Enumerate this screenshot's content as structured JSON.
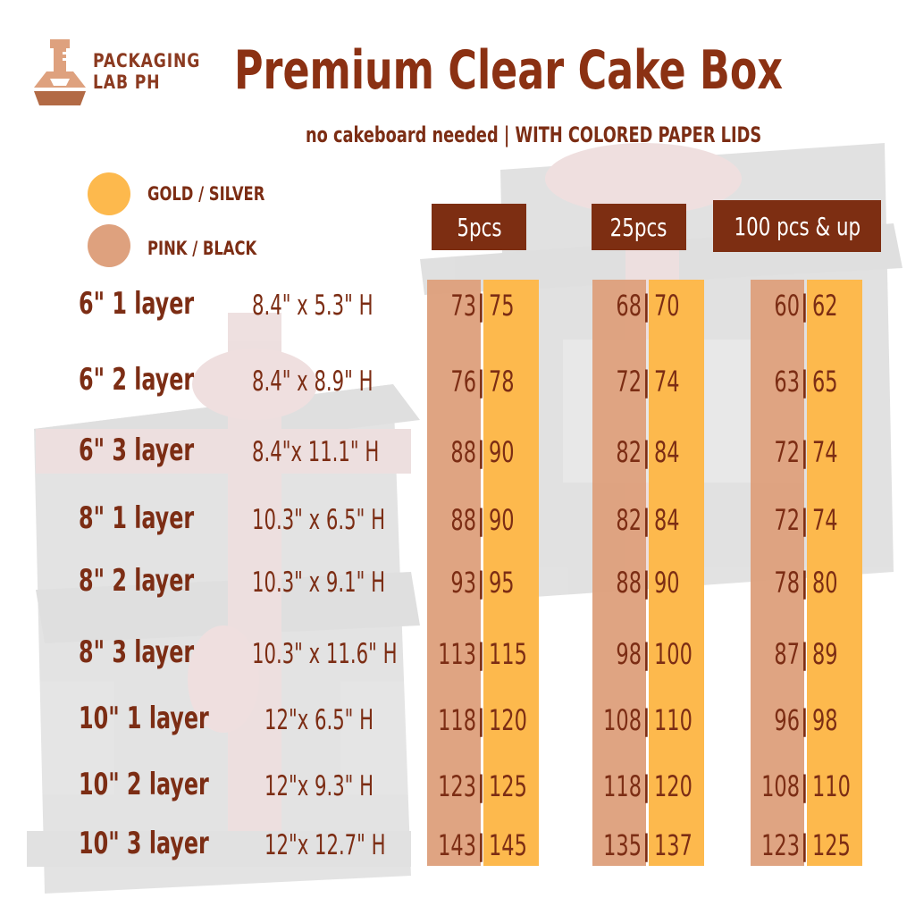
{
  "brand": {
    "line1": "PACKAGING",
    "line2": "LAB PH"
  },
  "title": "Premium Clear Cake Box",
  "subtitle": "no cakeboard needed | WITH COLORED PAPER LIDS",
  "colors": {
    "brown": "#7d2e12",
    "gold": "#fdb94d",
    "pink": "#dea17e"
  },
  "legend": [
    {
      "label": "GOLD / SILVER",
      "color": "#fdb94d"
    },
    {
      "label": "PINK / BLACK",
      "color": "#dea17e"
    }
  ],
  "headers": [
    "5pcs",
    "25pcs",
    "100 pcs & up"
  ],
  "rows": [
    {
      "name": "6\" 1 layer",
      "dims": "8.4\" x 5.3\" H",
      "p5": [
        "73",
        "75"
      ],
      "p25": [
        "68",
        "70"
      ],
      "p100": [
        "60",
        "62"
      ]
    },
    {
      "name": "6\" 2 layer",
      "dims": "8.4\" x 8.9\" H",
      "p5": [
        "76",
        "78"
      ],
      "p25": [
        "72",
        "74"
      ],
      "p100": [
        "63",
        "65"
      ]
    },
    {
      "name": "6\" 3 layer",
      "dims": "8.4\"x 11.1\" H",
      "p5": [
        "88",
        "90"
      ],
      "p25": [
        "82",
        "84"
      ],
      "p100": [
        "72",
        "74"
      ]
    },
    {
      "name": "8\" 1 layer",
      "dims": "10.3\" x 6.5\" H",
      "p5": [
        "88",
        "90"
      ],
      "p25": [
        "82",
        "84"
      ],
      "p100": [
        "72",
        "74"
      ]
    },
    {
      "name": "8\" 2 layer",
      "dims": "10.3\" x 9.1\" H",
      "p5": [
        "93",
        "95"
      ],
      "p25": [
        "88",
        "90"
      ],
      "p100": [
        "78",
        "80"
      ]
    },
    {
      "name": "8\" 3 layer",
      "dims": "10.3\" x 11.6\" H",
      "p5": [
        "113",
        "115"
      ],
      "p25": [
        "98",
        "100"
      ],
      "p100": [
        "87",
        "89"
      ]
    },
    {
      "name": "10\" 1 layer",
      "dims": "12\"x 6.5\" H",
      "p5": [
        "118",
        "120"
      ],
      "p25": [
        "108",
        "110"
      ],
      "p100": [
        "96",
        "98"
      ]
    },
    {
      "name": "10\" 2 layer",
      "dims": "12\"x 9.3\" H",
      "p5": [
        "123",
        "125"
      ],
      "p25": [
        "118",
        "120"
      ],
      "p100": [
        "108",
        "110"
      ]
    },
    {
      "name": "10\" 3 layer",
      "dims": "12\"x 12.7\" H",
      "p5": [
        "143",
        "145"
      ],
      "p25": [
        "135",
        "137"
      ],
      "p100": [
        "123",
        "125"
      ]
    }
  ]
}
